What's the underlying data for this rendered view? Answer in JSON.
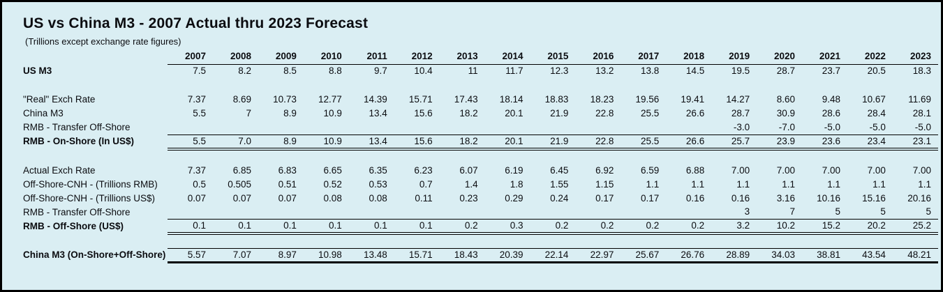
{
  "title": "US vs China M3 - 2007 Actual thru 2023 Forecast",
  "subtitle": "(Trillions except exchange rate figures)",
  "colors": {
    "background": "#daeef3",
    "frame_border": "#000000",
    "text": "#0b0c10"
  },
  "chart_data": {
    "type": "table",
    "title": "US vs China M3 - 2007 Actual thru 2023 Forecast",
    "subtitle": "(Trillions except exchange rate figures)",
    "columns": [
      "2007",
      "2008",
      "2009",
      "2010",
      "2011",
      "2012",
      "2013",
      "2014",
      "2015",
      "2016",
      "2017",
      "2018",
      "2019",
      "2020",
      "2021",
      "2022",
      "2023"
    ],
    "rows": [
      {
        "label": "US M3",
        "bold": true,
        "underline": "none",
        "values": [
          "7.5",
          "8.2",
          "8.5",
          "8.8",
          "9.7",
          "10.4",
          "11",
          "11.7",
          "12.3",
          "13.2",
          "13.8",
          "14.5",
          "19.5",
          "28.7",
          "23.7",
          "20.5",
          "18.3"
        ]
      },
      {
        "label": "",
        "spacer": true,
        "values": [
          "",
          "",
          "",
          "",
          "",
          "",
          "",
          "",
          "",
          "",
          "",
          "",
          "",
          "",
          "",
          "",
          ""
        ]
      },
      {
        "label": "\"Real\" Exch Rate",
        "bold": false,
        "underline": "none",
        "values": [
          "7.37",
          "8.69",
          "10.73",
          "12.77",
          "14.39",
          "15.71",
          "17.43",
          "18.14",
          "18.83",
          "18.23",
          "19.56",
          "19.41",
          "14.27",
          "8.60",
          "9.48",
          "10.67",
          "11.69"
        ]
      },
      {
        "label": "China M3",
        "bold": false,
        "underline": "none",
        "values": [
          "5.5",
          "7",
          "8.9",
          "10.9",
          "13.4",
          "15.6",
          "18.2",
          "20.1",
          "21.9",
          "22.8",
          "25.5",
          "26.6",
          "28.7",
          "30.9",
          "28.6",
          "28.4",
          "28.1"
        ]
      },
      {
        "label": "RMB - Transfer Off-Shore",
        "bold": false,
        "underline": "single",
        "values": [
          "",
          "",
          "",
          "",
          "",
          "",
          "",
          "",
          "",
          "",
          "",
          "",
          "-3.0",
          "-7.0",
          "-5.0",
          "-5.0",
          "-5.0"
        ]
      },
      {
        "label": "RMB - On-Shore  (In US$)",
        "bold": true,
        "underline": "double",
        "values": [
          "5.5",
          "7.0",
          "8.9",
          "10.9",
          "13.4",
          "15.6",
          "18.2",
          "20.1",
          "21.9",
          "22.8",
          "25.5",
          "26.6",
          "25.7",
          "23.9",
          "23.6",
          "23.4",
          "23.1"
        ]
      },
      {
        "label": "",
        "spacer": true,
        "values": [
          "",
          "",
          "",
          "",
          "",
          "",
          "",
          "",
          "",
          "",
          "",
          "",
          "",
          "",
          "",
          "",
          ""
        ]
      },
      {
        "label": "Actual Exch Rate",
        "bold": false,
        "underline": "none",
        "values": [
          "7.37",
          "6.85",
          "6.83",
          "6.65",
          "6.35",
          "6.23",
          "6.07",
          "6.19",
          "6.45",
          "6.92",
          "6.59",
          "6.88",
          "7.00",
          "7.00",
          "7.00",
          "7.00",
          "7.00"
        ]
      },
      {
        "label": "Off-Shore-CNH - (Trillions RMB)",
        "bold": false,
        "underline": "none",
        "values": [
          "0.5",
          "0.505",
          "0.51",
          "0.52",
          "0.53",
          "0.7",
          "1.4",
          "1.8",
          "1.55",
          "1.15",
          "1.1",
          "1.1",
          "1.1",
          "1.1",
          "1.1",
          "1.1",
          "1.1"
        ]
      },
      {
        "label": "Off-Shore-CNH - (Trillions US$)",
        "bold": false,
        "underline": "none",
        "values": [
          "0.07",
          "0.07",
          "0.07",
          "0.08",
          "0.08",
          "0.11",
          "0.23",
          "0.29",
          "0.24",
          "0.17",
          "0.17",
          "0.16",
          "0.16",
          "3.16",
          "10.16",
          "15.16",
          "20.16"
        ]
      },
      {
        "label": "RMB - Transfer Off-Shore",
        "bold": false,
        "underline": "single",
        "values": [
          "",
          "",
          "",
          "",
          "",
          "",
          "",
          "",
          "",
          "",
          "",
          "",
          "3",
          "7",
          "5",
          "5",
          "5"
        ]
      },
      {
        "label": "RMB - Off-Shore (US$)",
        "bold": true,
        "underline": "double",
        "values": [
          "0.1",
          "0.1",
          "0.1",
          "0.1",
          "0.1",
          "0.1",
          "0.2",
          "0.3",
          "0.2",
          "0.2",
          "0.2",
          "0.2",
          "3.2",
          "10.2",
          "15.2",
          "20.2",
          "25.2"
        ]
      },
      {
        "label": "",
        "spacer": true,
        "values": [
          "",
          "",
          "",
          "",
          "",
          "",
          "",
          "",
          "",
          "",
          "",
          "",
          "",
          "",
          "",
          "",
          ""
        ]
      },
      {
        "label": "China M3 (On-Shore+Off-Shore)",
        "bold": true,
        "underline": "thick",
        "overline": "single",
        "values": [
          "5.57",
          "7.07",
          "8.97",
          "10.98",
          "13.48",
          "15.71",
          "18.43",
          "20.39",
          "22.14",
          "22.97",
          "25.67",
          "26.76",
          "28.89",
          "34.03",
          "38.81",
          "43.54",
          "48.21"
        ]
      }
    ]
  }
}
